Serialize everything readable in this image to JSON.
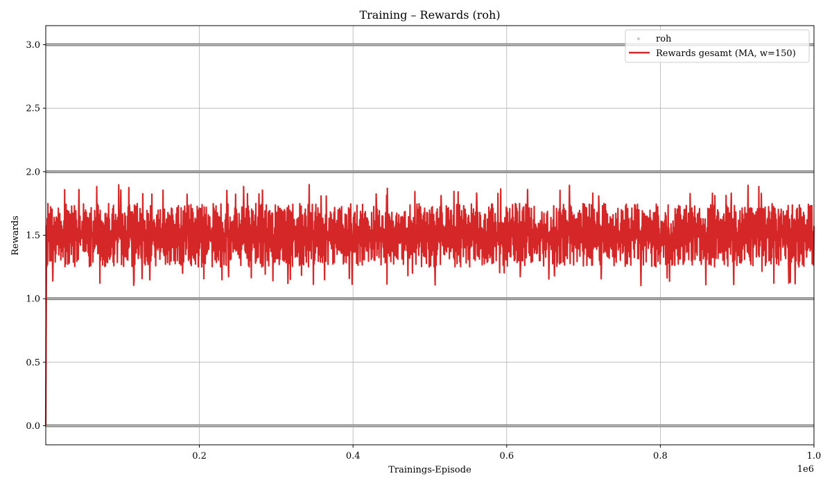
{
  "chart_data": {
    "type": "line",
    "title": "Training – Rewards (roh)",
    "xlabel": "Trainings-Episode",
    "ylabel": "Rewards",
    "x_offset_label": "1e6",
    "xlim": [
      0,
      1000000
    ],
    "ylim": [
      -0.15,
      3.15
    ],
    "x_ticks": [
      200000,
      400000,
      600000,
      800000,
      1000000
    ],
    "x_tick_labels": [
      "0.2",
      "0.4",
      "0.6",
      "0.8",
      "1.0"
    ],
    "y_ticks": [
      0.0,
      0.5,
      1.0,
      1.5,
      2.0,
      2.5,
      3.0
    ],
    "y_tick_labels": [
      "0.0",
      "0.5",
      "1.0",
      "1.5",
      "2.0",
      "2.5",
      "3.0"
    ],
    "grid": true,
    "legend_position": "top-right",
    "series": [
      {
        "name": "roh",
        "kind": "scatter",
        "color": "#bbbbbb",
        "discrete_levels": [
          0,
          1,
          2,
          3
        ],
        "level_rows": [
          {
            "y": 0,
            "x_range": [
              0,
              1000000
            ]
          },
          {
            "y": 1,
            "x_range": [
              0,
              1000000
            ]
          },
          {
            "y": 2,
            "x_range": [
              0,
              1000000
            ]
          },
          {
            "y": 3,
            "x_range": [
              0,
              1000000
            ]
          }
        ]
      },
      {
        "name": "Rewards gesamt (MA, w=150)",
        "kind": "line",
        "color": "#d62728",
        "x": [
          0,
          1000,
          20000,
          23000,
          40000,
          45000,
          60000,
          80000,
          100000,
          120000,
          140000,
          160000,
          180000,
          200000,
          250000,
          280000,
          300000,
          350000,
          380000,
          400000,
          410000,
          450000,
          500000,
          550000,
          560000,
          600000,
          650000,
          700000,
          750000,
          765000,
          800000,
          850000,
          900000,
          950000,
          1000000
        ],
        "y": [
          0.0,
          1.5,
          1.6,
          1.9,
          1.5,
          1.4,
          1.5,
          1.3,
          1.6,
          1.5,
          1.4,
          1.5,
          1.3,
          1.5,
          1.7,
          1.3,
          1.5,
          1.4,
          1.6,
          1.5,
          1.12,
          1.5,
          1.6,
          1.4,
          1.88,
          1.5,
          1.4,
          1.6,
          1.5,
          1.1,
          1.5,
          1.6,
          1.4,
          1.5,
          1.5
        ],
        "band": {
          "center": 1.5,
          "typical_low": 1.25,
          "typical_high": 1.75,
          "min": 1.1,
          "max": 1.9
        }
      }
    ]
  }
}
